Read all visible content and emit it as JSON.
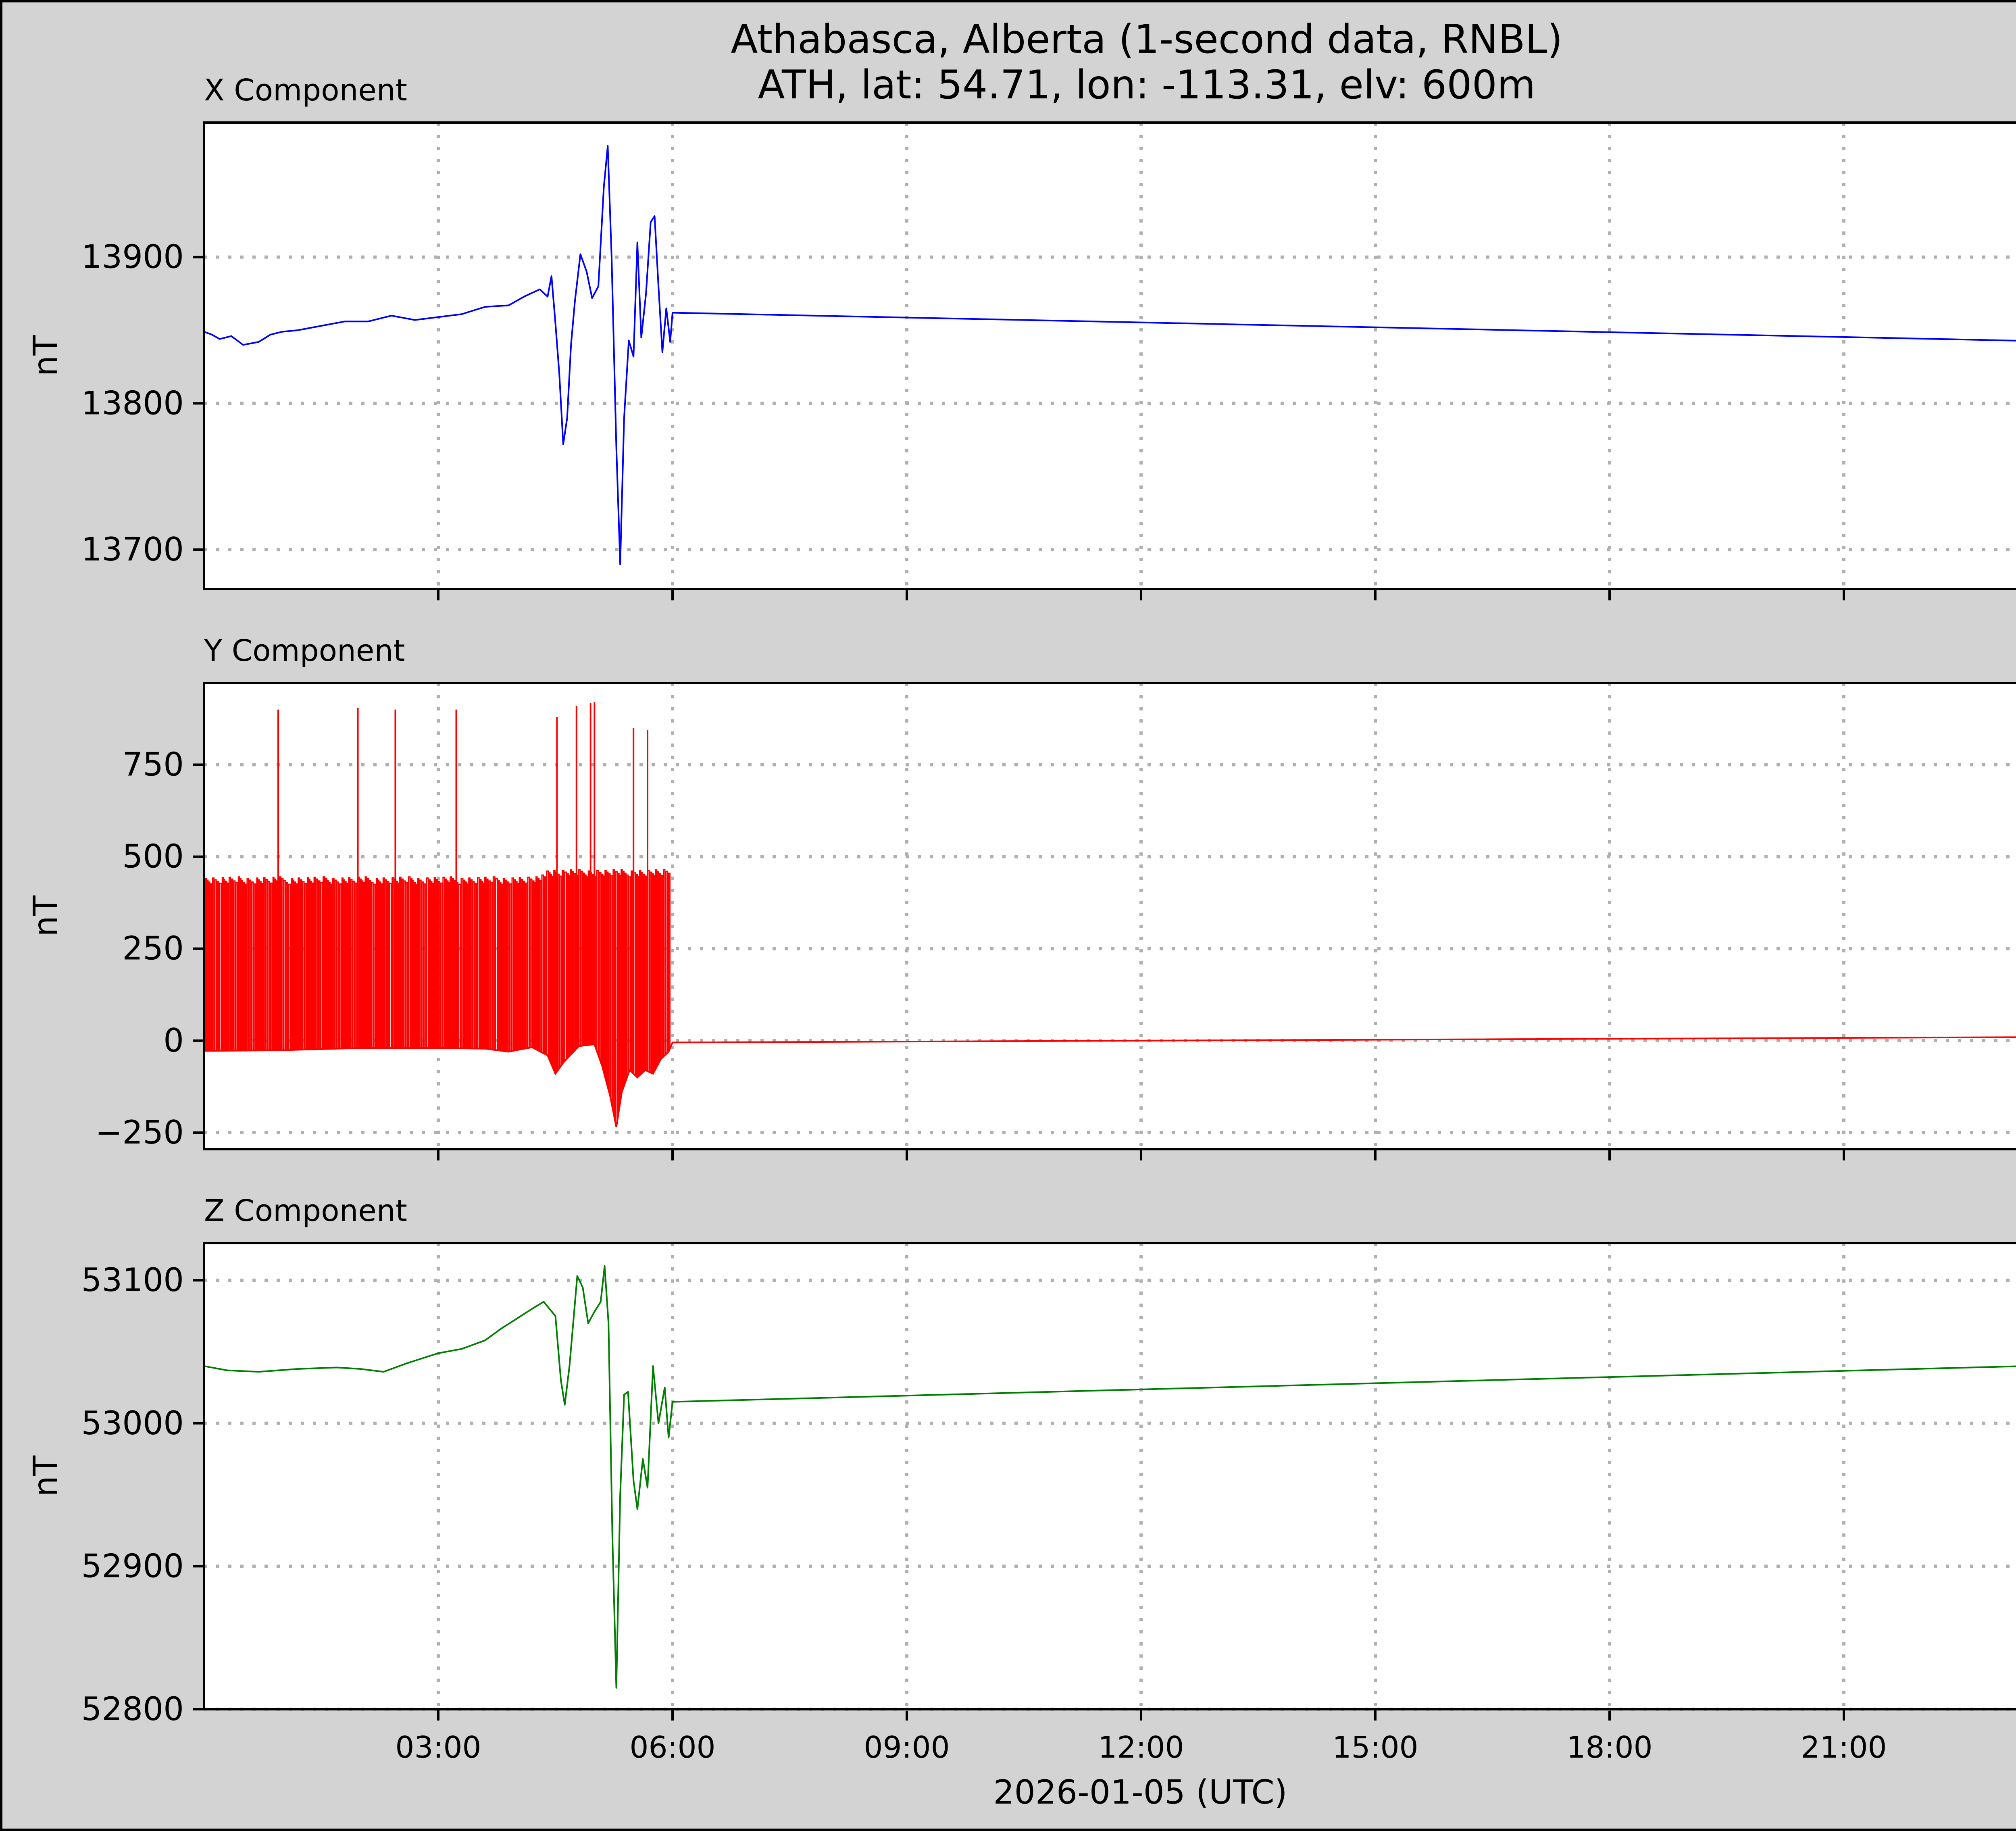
{
  "chart_data": {
    "type": "line",
    "title": "Athabasca, Alberta (1-second data, RNBL)",
    "subtitle": "ATH, lat: 54.71, lon: -113.31, elv: 600m",
    "xlabel": "2026-01-05 (UTC)",
    "x_unit": "hours UTC",
    "xlim": [
      0,
      24
    ],
    "x_ticks": [
      3,
      6,
      9,
      12,
      15,
      18,
      21
    ],
    "x_tick_labels": [
      "03:00",
      "06:00",
      "09:00",
      "12:00",
      "15:00",
      "18:00",
      "21:00"
    ],
    "grid": true,
    "panels": [
      {
        "title": "X Component",
        "ylabel": "nT",
        "color": "#0000ff",
        "ylim": [
          13673,
          13992
        ],
        "y_ticks": [
          13700,
          13800,
          13900
        ],
        "y_tick_labels": [
          "13700",
          "13800",
          "13900"
        ],
        "series": [
          {
            "x": 0.0,
            "y": 13849
          },
          {
            "x": 0.1,
            "y": 13847
          },
          {
            "x": 0.2,
            "y": 13844
          },
          {
            "x": 0.35,
            "y": 13846
          },
          {
            "x": 0.5,
            "y": 13840
          },
          {
            "x": 0.7,
            "y": 13842
          },
          {
            "x": 0.85,
            "y": 13847
          },
          {
            "x": 1.0,
            "y": 13849
          },
          {
            "x": 1.2,
            "y": 13850
          },
          {
            "x": 1.5,
            "y": 13853
          },
          {
            "x": 1.8,
            "y": 13856
          },
          {
            "x": 2.1,
            "y": 13856
          },
          {
            "x": 2.4,
            "y": 13860
          },
          {
            "x": 2.7,
            "y": 13857
          },
          {
            "x": 3.0,
            "y": 13859
          },
          {
            "x": 3.3,
            "y": 13861
          },
          {
            "x": 3.6,
            "y": 13866
          },
          {
            "x": 3.9,
            "y": 13867
          },
          {
            "x": 4.1,
            "y": 13873
          },
          {
            "x": 4.3,
            "y": 13878
          },
          {
            "x": 4.4,
            "y": 13873
          },
          {
            "x": 4.45,
            "y": 13887
          },
          {
            "x": 4.5,
            "y": 13855
          },
          {
            "x": 4.55,
            "y": 13820
          },
          {
            "x": 4.6,
            "y": 13772
          },
          {
            "x": 4.65,
            "y": 13790
          },
          {
            "x": 4.7,
            "y": 13840
          },
          {
            "x": 4.75,
            "y": 13870
          },
          {
            "x": 4.82,
            "y": 13902
          },
          {
            "x": 4.9,
            "y": 13890
          },
          {
            "x": 4.97,
            "y": 13872
          },
          {
            "x": 5.05,
            "y": 13880
          },
          {
            "x": 5.12,
            "y": 13948
          },
          {
            "x": 5.17,
            "y": 13976
          },
          {
            "x": 5.22,
            "y": 13900
          },
          {
            "x": 5.28,
            "y": 13770
          },
          {
            "x": 5.33,
            "y": 13690
          },
          {
            "x": 5.38,
            "y": 13790
          },
          {
            "x": 5.44,
            "y": 13843
          },
          {
            "x": 5.5,
            "y": 13832
          },
          {
            "x": 5.55,
            "y": 13910
          },
          {
            "x": 5.6,
            "y": 13845
          },
          {
            "x": 5.66,
            "y": 13875
          },
          {
            "x": 5.72,
            "y": 13924
          },
          {
            "x": 5.77,
            "y": 13928
          },
          {
            "x": 5.82,
            "y": 13880
          },
          {
            "x": 5.87,
            "y": 13835
          },
          {
            "x": 5.92,
            "y": 13865
          },
          {
            "x": 5.97,
            "y": 13842
          },
          {
            "x": 6.0,
            "y": 13862
          },
          {
            "x": 24.0,
            "y": 13842
          }
        ]
      },
      {
        "title": "Y Component",
        "ylabel": "nT",
        "color": "#ff0000",
        "ylim": [
          -295,
          972
        ],
        "y_ticks": [
          -250,
          0,
          250,
          500,
          750
        ],
        "y_tick_labels": [
          "−250",
          "0",
          "250",
          "500",
          "750"
        ],
        "baseline": [
          {
            "x": 0.0,
            "y": -28
          },
          {
            "x": 1.0,
            "y": -26
          },
          {
            "x": 2.0,
            "y": -20
          },
          {
            "x": 3.0,
            "y": -20
          },
          {
            "x": 3.6,
            "y": -22
          },
          {
            "x": 3.9,
            "y": -30
          },
          {
            "x": 4.2,
            "y": -18
          },
          {
            "x": 4.4,
            "y": -40
          },
          {
            "x": 4.5,
            "y": -90
          },
          {
            "x": 4.6,
            "y": -60
          },
          {
            "x": 4.8,
            "y": -15
          },
          {
            "x": 5.0,
            "y": -10
          },
          {
            "x": 5.1,
            "y": -70
          },
          {
            "x": 5.2,
            "y": -150
          },
          {
            "x": 5.28,
            "y": -235
          },
          {
            "x": 5.35,
            "y": -140
          },
          {
            "x": 5.45,
            "y": -80
          },
          {
            "x": 5.55,
            "y": -100
          },
          {
            "x": 5.65,
            "y": -80
          },
          {
            "x": 5.75,
            "y": -90
          },
          {
            "x": 5.85,
            "y": -50
          },
          {
            "x": 5.95,
            "y": -30
          },
          {
            "x": 6.0,
            "y": -5
          },
          {
            "x": 24.0,
            "y": 10
          }
        ],
        "toggle_level": 435,
        "toggle_range": [
          0,
          5.97
        ],
        "spikes": [
          {
            "x": 0.95,
            "y": 900
          },
          {
            "x": 1.97,
            "y": 905
          },
          {
            "x": 2.45,
            "y": 900
          },
          {
            "x": 3.23,
            "y": 900
          },
          {
            "x": 4.52,
            "y": 880
          },
          {
            "x": 4.77,
            "y": 910
          },
          {
            "x": 4.95,
            "y": 918
          },
          {
            "x": 5.0,
            "y": 920
          },
          {
            "x": 5.5,
            "y": 850
          },
          {
            "x": 5.68,
            "y": 845
          }
        ]
      },
      {
        "title": "Z Component",
        "ylabel": "nT",
        "color": "#008000",
        "ylim": [
          52800,
          53126
        ],
        "y_ticks": [
          52800,
          52900,
          53000,
          53100
        ],
        "y_tick_labels": [
          "52800",
          "52900",
          "53000",
          "53100"
        ],
        "series": [
          {
            "x": 0.0,
            "y": 53040
          },
          {
            "x": 0.3,
            "y": 53037
          },
          {
            "x": 0.7,
            "y": 53036
          },
          {
            "x": 1.2,
            "y": 53038
          },
          {
            "x": 1.7,
            "y": 53039
          },
          {
            "x": 2.0,
            "y": 53038
          },
          {
            "x": 2.3,
            "y": 53036
          },
          {
            "x": 2.6,
            "y": 53042
          },
          {
            "x": 3.0,
            "y": 53049
          },
          {
            "x": 3.3,
            "y": 53052
          },
          {
            "x": 3.6,
            "y": 53058
          },
          {
            "x": 3.8,
            "y": 53066
          },
          {
            "x": 4.0,
            "y": 53073
          },
          {
            "x": 4.2,
            "y": 53080
          },
          {
            "x": 4.35,
            "y": 53085
          },
          {
            "x": 4.5,
            "y": 53075
          },
          {
            "x": 4.57,
            "y": 53030
          },
          {
            "x": 4.62,
            "y": 53013
          },
          {
            "x": 4.68,
            "y": 53040
          },
          {
            "x": 4.78,
            "y": 53103
          },
          {
            "x": 4.85,
            "y": 53095
          },
          {
            "x": 4.92,
            "y": 53070
          },
          {
            "x": 5.0,
            "y": 53078
          },
          {
            "x": 5.08,
            "y": 53085
          },
          {
            "x": 5.13,
            "y": 53110
          },
          {
            "x": 5.18,
            "y": 53070
          },
          {
            "x": 5.23,
            "y": 52920
          },
          {
            "x": 5.28,
            "y": 52815
          },
          {
            "x": 5.33,
            "y": 52950
          },
          {
            "x": 5.38,
            "y": 53020
          },
          {
            "x": 5.43,
            "y": 53022
          },
          {
            "x": 5.5,
            "y": 52960
          },
          {
            "x": 5.55,
            "y": 52940
          },
          {
            "x": 5.62,
            "y": 52975
          },
          {
            "x": 5.68,
            "y": 52955
          },
          {
            "x": 5.75,
            "y": 53040
          },
          {
            "x": 5.82,
            "y": 53000
          },
          {
            "x": 5.9,
            "y": 53025
          },
          {
            "x": 5.95,
            "y": 52990
          },
          {
            "x": 6.0,
            "y": 53015
          },
          {
            "x": 24.0,
            "y": 53041
          }
        ]
      }
    ]
  }
}
